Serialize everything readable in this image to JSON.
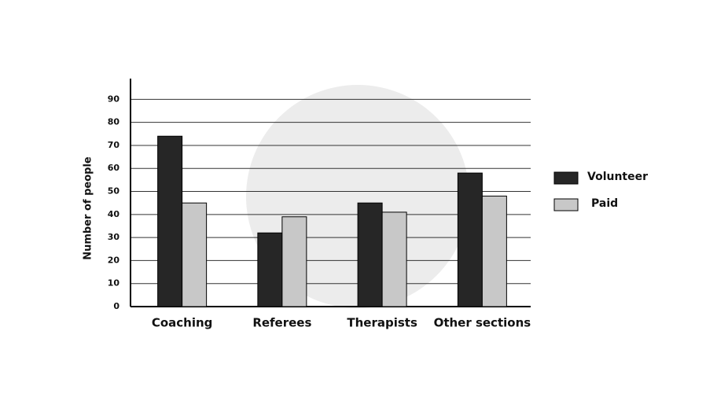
{
  "chart_data": {
    "type": "bar",
    "y_label": "Number of people",
    "categories": [
      "Coaching",
      "Referees",
      "Therapists",
      "Other sections"
    ],
    "series": [
      {
        "name": "Volunteer",
        "color": "#262626",
        "values": [
          74,
          32,
          45,
          58
        ]
      },
      {
        "name": "Paid",
        "color": "#c8c8c8",
        "values": [
          45,
          39,
          41,
          48
        ]
      }
    ],
    "ylim": [
      0,
      99
    ],
    "yticks": [
      0,
      10,
      20,
      30,
      40,
      50,
      60,
      70,
      80,
      90
    ],
    "grid": true,
    "legend": "right"
  }
}
